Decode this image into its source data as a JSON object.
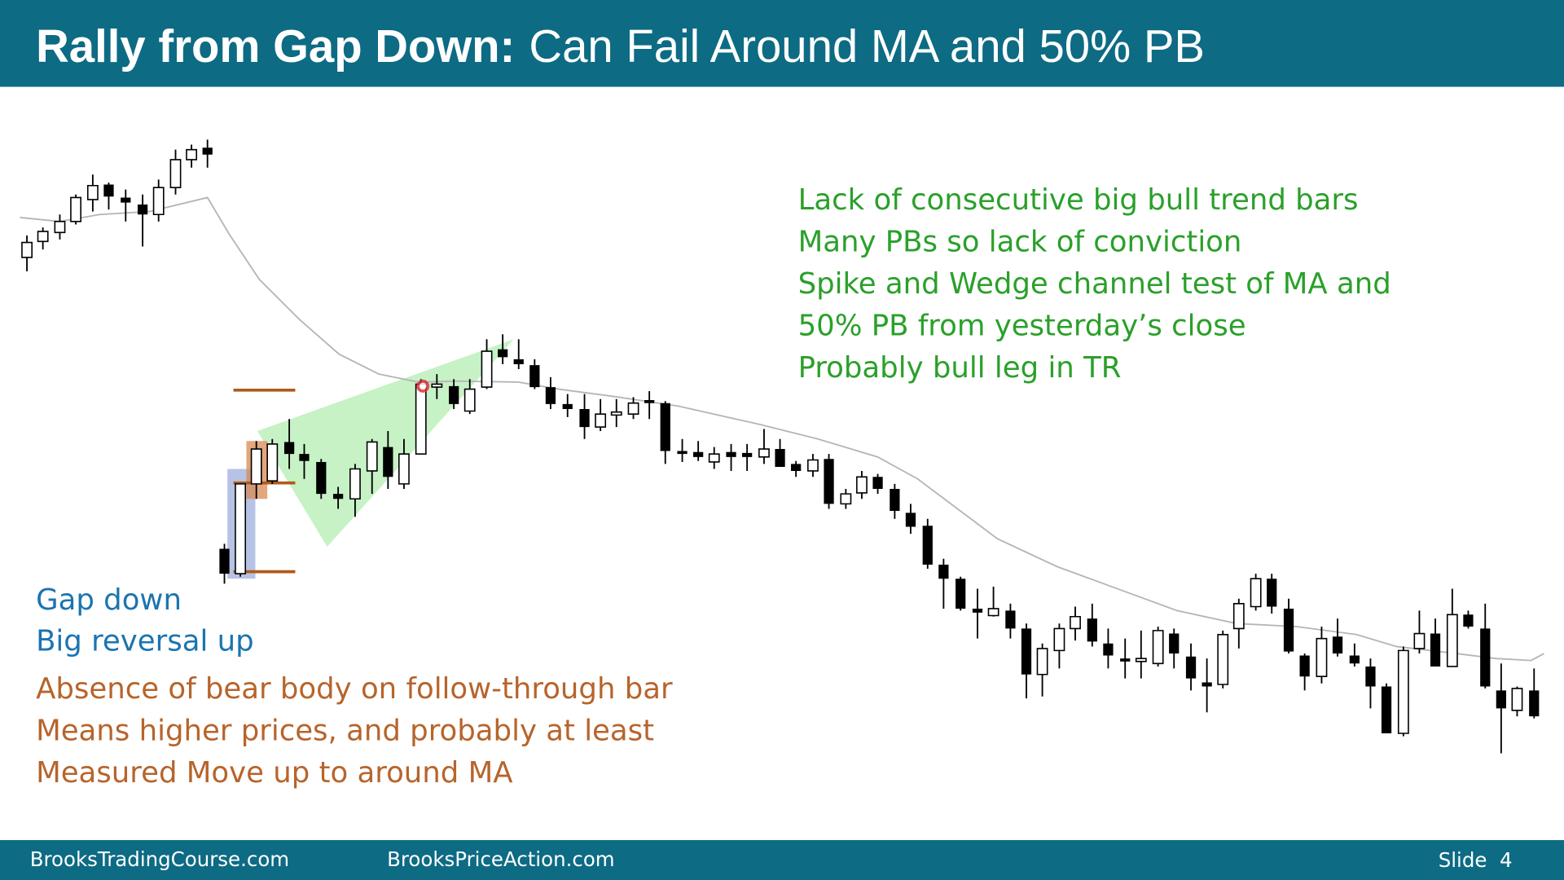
{
  "header": {
    "title_bold": "Rally from Gap Down:",
    "title_rest": "Can Fail Around MA and 50% PB"
  },
  "annotations": {
    "green": [
      "Lack of consecutive big bull trend bars",
      "Many PBs so lack of conviction",
      "Spike and Wedge channel test of MA and",
      "50% PB from yesterday’s close",
      "Probably bull leg in TR"
    ],
    "blue": [
      "Gap down",
      "Big reversal up"
    ],
    "orange": [
      "Absence of bear body on follow-through bar",
      "Means higher prices, and probably at least",
      "Measured Move up to around MA"
    ]
  },
  "footer": {
    "left": "BrooksTradingCourse.com",
    "center": "BrooksPriceAction.com",
    "slide": "Slide  4"
  }
}
